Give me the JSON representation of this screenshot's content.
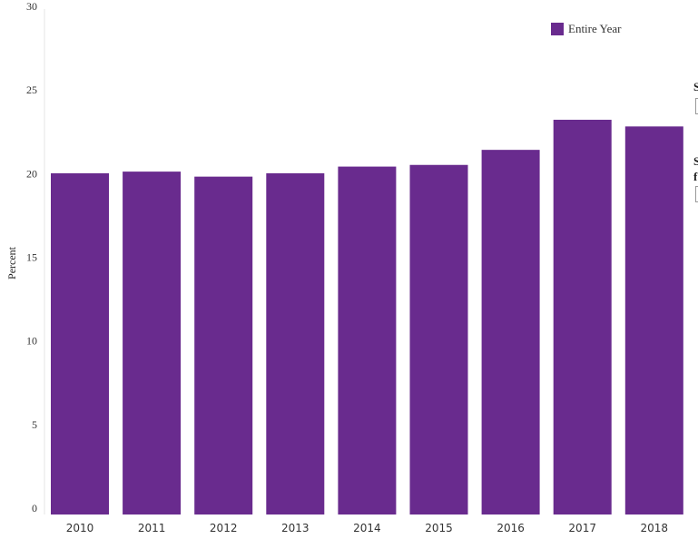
{
  "chart_data": {
    "type": "bar",
    "title": "",
    "xlabel": "",
    "ylabel": "Percent",
    "ylim": [
      0,
      30
    ],
    "yticks": [
      "0",
      "5",
      "10",
      "15",
      "20",
      "25",
      "30"
    ],
    "categories": [
      "2010",
      "2011",
      "2012",
      "2013",
      "2014",
      "2015",
      "2016",
      "2017",
      "2018"
    ],
    "series": [
      {
        "name": "Entire Year",
        "color": "#692b8e",
        "values": [
          20.4,
          20.5,
          20.2,
          20.4,
          20.8,
          20.9,
          21.8,
          23.6,
          23.2
        ]
      }
    ],
    "legend_position": "top-right",
    "grid": false
  },
  "side_panel": {
    "glyph_top": "S",
    "glyph_mid": "S",
    "glyph_bottom": "f"
  }
}
